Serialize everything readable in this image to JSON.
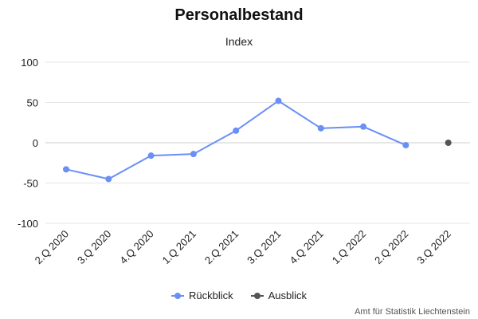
{
  "chart_data": {
    "type": "line",
    "title": "Personalbestand",
    "subtitle": "Index",
    "categories": [
      "2.Q 2020",
      "3.Q 2020",
      "4.Q 2020",
      "1.Q 2021",
      "2.Q 2021",
      "3.Q 2021",
      "4.Q 2021",
      "1.Q 2022",
      "2.Q 2022",
      "3.Q 2022"
    ],
    "series": [
      {
        "name": "Rückblick",
        "color": "#6a8ff5",
        "values": [
          -33,
          -45,
          -16,
          -14,
          15,
          52,
          18,
          20,
          -3,
          null
        ]
      },
      {
        "name": "Ausblick",
        "color": "#555555",
        "values": [
          null,
          null,
          null,
          null,
          null,
          null,
          null,
          null,
          null,
          0
        ]
      }
    ],
    "yticks": [
      100,
      50,
      0,
      -50,
      -100
    ],
    "ylim": [
      -100,
      100
    ],
    "grid": true,
    "legend": "bottom-center"
  },
  "credit": "Amt für Statistik Liechtenstein"
}
